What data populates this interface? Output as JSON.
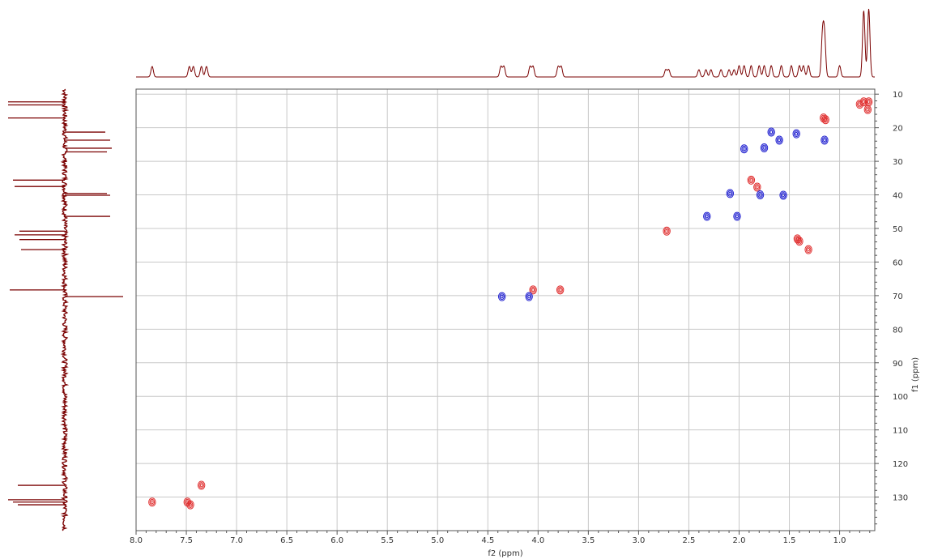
{
  "chart_data": {
    "type": "scatter",
    "subtype": "2D NMR HSQC contour plot with 1D projections",
    "xlabel": "f2 (ppm)",
    "ylabel": "f1 (ppm)",
    "xlim": [
      8.0,
      0.65
    ],
    "ylim": [
      8.5,
      140
    ],
    "x_reversed": true,
    "y_reversed": true,
    "grid": true,
    "x_ticks": [
      8.0,
      7.5,
      7.0,
      6.5,
      6.0,
      5.5,
      5.0,
      4.5,
      4.0,
      3.5,
      3.0,
      2.5,
      2.0,
      1.5,
      1.0
    ],
    "x_tick_labels": [
      "8.0",
      "7.5",
      "7.0",
      "6.5",
      "6.0",
      "5.5",
      "5.0",
      "4.5",
      "4.0",
      "3.5",
      "3.0",
      "2.5",
      "2.0",
      "1.5",
      "1.0"
    ],
    "y_ticks": [
      10,
      20,
      30,
      40,
      50,
      60,
      70,
      80,
      90,
      100,
      110,
      120,
      130
    ],
    "y_tick_labels": [
      "10",
      "20",
      "30",
      "40",
      "50",
      "60",
      "70",
      "80",
      "90",
      "100",
      "110",
      "120",
      "130"
    ],
    "colors": {
      "positive": "#e03030",
      "negative": "#2020d0",
      "projection": "#7a0000",
      "grid": "#c8c8c8",
      "frame": "#555555"
    },
    "series": [
      {
        "phase": "positive",
        "color": "#e03030",
        "points": [
          [
            7.84,
            131.5
          ],
          [
            7.49,
            131.5
          ],
          [
            7.46,
            132.3
          ],
          [
            7.35,
            126.5
          ],
          [
            4.05,
            68.3
          ],
          [
            3.78,
            68.3
          ],
          [
            2.72,
            50.8
          ],
          [
            1.88,
            35.6
          ],
          [
            1.82,
            37.7
          ],
          [
            1.42,
            53.1
          ],
          [
            1.4,
            53.8
          ],
          [
            1.31,
            56.3
          ],
          [
            1.16,
            17.1
          ],
          [
            1.14,
            17.6
          ],
          [
            0.8,
            13.0
          ],
          [
            0.76,
            12.3
          ],
          [
            0.71,
            12.3
          ],
          [
            0.72,
            14.6
          ]
        ]
      },
      {
        "phase": "negative",
        "color": "#2020d0",
        "points": [
          [
            4.36,
            70.3
          ],
          [
            4.09,
            70.3
          ],
          [
            2.32,
            46.4
          ],
          [
            2.02,
            46.4
          ],
          [
            2.09,
            39.6
          ],
          [
            1.95,
            26.3
          ],
          [
            1.75,
            26.0
          ],
          [
            1.68,
            21.3
          ],
          [
            1.6,
            23.7
          ],
          [
            1.43,
            21.8
          ],
          [
            1.15,
            23.7
          ],
          [
            1.79,
            40.0
          ],
          [
            1.56,
            40.1
          ]
        ]
      }
    ],
    "projections": {
      "top_peaks_ppm": [
        7.84,
        7.47,
        7.43,
        7.35,
        7.3,
        4.37,
        4.34,
        4.08,
        4.05,
        3.8,
        3.77,
        2.73,
        2.7,
        2.4,
        2.33,
        2.28,
        2.18,
        2.1,
        2.05,
        2.0,
        1.95,
        1.88,
        1.8,
        1.75,
        1.68,
        1.58,
        1.48,
        1.4,
        1.36,
        1.31,
        1.17,
        1.15,
        1.0,
        0.76,
        0.71
      ],
      "left_peaks_ppm": [
        12.3,
        13.2,
        17.1,
        21.3,
        23.7,
        26.1,
        27.2,
        35.6,
        37.5,
        39.6,
        40.1,
        46.4,
        50.8,
        51.9,
        53.3,
        56.3,
        68.3,
        70.3,
        126.5,
        130.8,
        131.5,
        132.3
      ]
    }
  }
}
